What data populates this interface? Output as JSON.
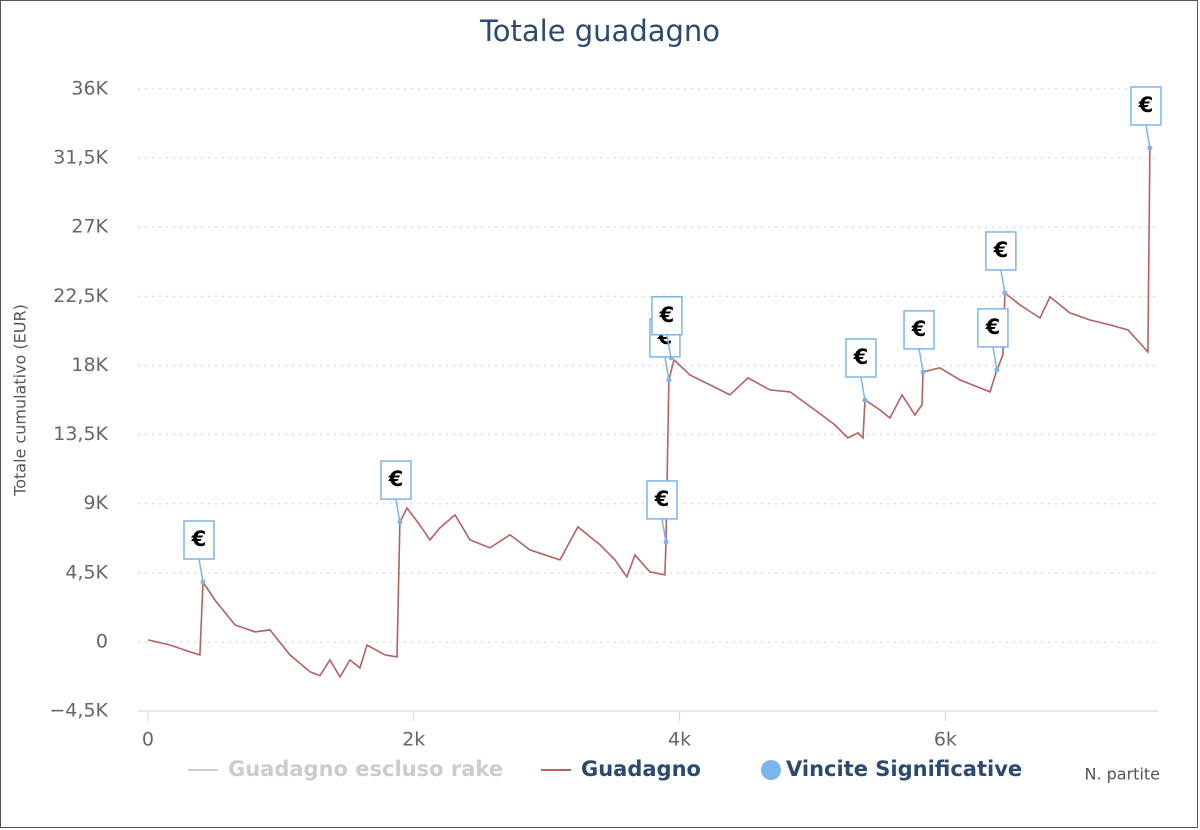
{
  "chart_data": {
    "type": "line",
    "title": "Totale guadagno",
    "y_axis_label": "Totale cumulativo (EUR)",
    "x_axis_label": "N. partite",
    "xlim": [
      -75,
      7600
    ],
    "xticks": [
      0,
      {
        "value": 2000,
        "label": "2k"
      },
      {
        "value": 4000,
        "label": "4k"
      },
      {
        "value": 6000,
        "label": "6k"
      }
    ],
    "ylim": [
      -4500,
      36000
    ],
    "yticks": [
      {
        "value": -4500,
        "label": "−4,5K"
      },
      0,
      {
        "value": 4500,
        "label": "4,5K"
      },
      {
        "value": 9000,
        "label": "9K"
      },
      {
        "value": 13500,
        "label": "13,5K"
      },
      {
        "value": 18000,
        "label": "18K"
      },
      {
        "value": 22500,
        "label": "22,5K"
      },
      {
        "value": 27000,
        "label": "27K"
      },
      {
        "value": 31500,
        "label": "31,5K"
      },
      {
        "value": 36000,
        "label": "36K"
      }
    ],
    "grid": true,
    "legend": "bottom",
    "series": [
      {
        "name": "Guadagno escluso rake",
        "color": "#cccccc",
        "visible": false
      },
      {
        "name": "Guadagno",
        "color": "#b5615f",
        "kind": "line",
        "x": [
          0,
          165,
          316,
          391,
          414,
          504,
          655,
          805,
          918,
          1068,
          1219,
          1294,
          1369,
          1445,
          1520,
          1595,
          1648,
          1783,
          1874,
          1896,
          1949,
          2046,
          2122,
          2197,
          2310,
          2423,
          2573,
          2724,
          2874,
          3100,
          3235,
          3401,
          3514,
          3604,
          3664,
          3777,
          3890,
          3898,
          3920,
          3958,
          4078,
          4229,
          4379,
          4515,
          4680,
          4831,
          5019,
          5169,
          5267,
          5343,
          5380,
          5395,
          5508,
          5583,
          5674,
          5771,
          5824,
          5832,
          5959,
          6110,
          6260,
          6336,
          6388,
          6433,
          6448,
          6561,
          6712,
          6787,
          6937,
          7088,
          7238,
          7374,
          7524,
          7539
        ],
        "values": [
          130,
          -200,
          -650,
          -850,
          3900,
          2730,
          1100,
          650,
          780,
          -850,
          -1950,
          -2200,
          -1170,
          -2280,
          -1170,
          -1700,
          -200,
          -850,
          -980,
          7800,
          8720,
          7600,
          6640,
          7420,
          8270,
          6640,
          6120,
          6970,
          5990,
          5340,
          7490,
          6320,
          5340,
          4230,
          5660,
          4560,
          4360,
          6510,
          17060,
          18360,
          17380,
          16730,
          16080,
          17190,
          16410,
          16280,
          15100,
          14130,
          13280,
          13610,
          13280,
          15750,
          15100,
          14580,
          16080,
          14780,
          15430,
          17580,
          17840,
          17060,
          16540,
          16280,
          17710,
          18680,
          22720,
          21940,
          21090,
          22460,
          21420,
          20960,
          20640,
          20310,
          18880,
          32160
        ]
      },
      {
        "name": "Vincite Significative",
        "color": "#7cb5ec",
        "kind": "scatter",
        "flag_label": "€",
        "x": [
          414,
          1896,
          3898,
          3920,
          3935,
          5395,
          5832,
          6388,
          6448,
          7539
        ],
        "values": [
          3900,
          7800,
          6510,
          17060,
          18500,
          15750,
          17580,
          17710,
          22720,
          32160
        ]
      }
    ]
  }
}
